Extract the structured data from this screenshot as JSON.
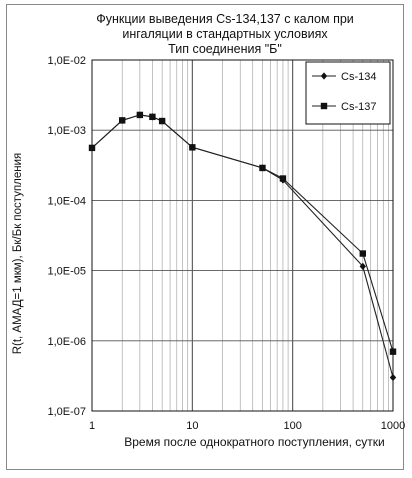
{
  "chart_data": {
    "type": "line",
    "title": [
      "Функции выведения Cs-134,137 с калом при",
      "ингаляции в стандартных условиях",
      "Тип соединения \"Б\""
    ],
    "xlabel": "Время после однократного поступления, сутки",
    "ylabel": "R(t, АМАД=1 мкм), Бк/Бк поступления",
    "x_scale": "log",
    "y_scale": "log",
    "xlim": [
      1,
      1000
    ],
    "ylim": [
      1e-07,
      0.01
    ],
    "grid": true,
    "legend_position": "top-right",
    "x_tick_labels": [
      "1",
      "10",
      "100",
      "1000"
    ],
    "y_tick_labels": [
      "1,0E-02",
      "1,0E-03",
      "1,0E-04",
      "1,0E-05",
      "1,0E-06",
      "1,0E-07"
    ],
    "series": [
      {
        "name": "Cs-134",
        "marker": "diamond",
        "color": "#222222",
        "x": [
          1,
          2,
          3,
          4,
          5,
          10,
          50,
          80,
          500,
          1000
        ],
        "y": [
          0.00056,
          0.00138,
          0.00165,
          0.00155,
          0.00135,
          0.00057,
          0.00029,
          0.000195,
          1.15e-05,
          3e-07
        ]
      },
      {
        "name": "Cs-137",
        "marker": "square",
        "color": "#222222",
        "x": [
          1,
          2,
          3,
          4,
          5,
          10,
          50,
          80,
          500,
          1000
        ],
        "y": [
          0.00056,
          0.00138,
          0.00165,
          0.00155,
          0.00135,
          0.00057,
          0.00029,
          0.000205,
          1.75e-05,
          7e-07
        ]
      }
    ]
  }
}
